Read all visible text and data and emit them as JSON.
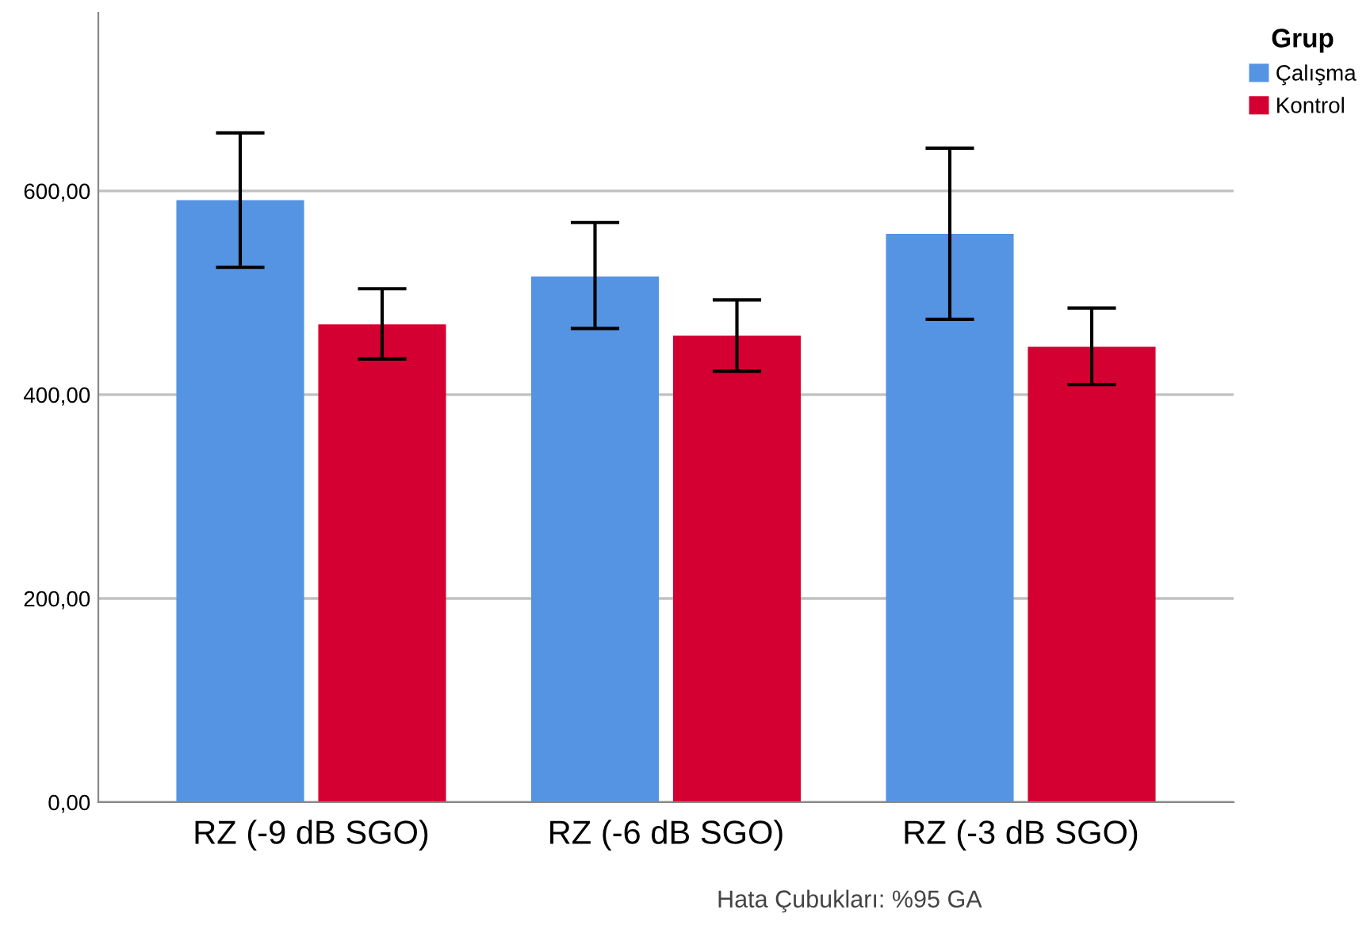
{
  "chart_data": {
    "type": "bar",
    "categories": [
      "RZ (-9 dB SGO)",
      "RZ (-6 dB SGO)",
      "RZ (-3 dB SGO)"
    ],
    "series": [
      {
        "name": "Çalışma",
        "color": "#5594e2",
        "values": [
          591,
          516,
          558
        ],
        "errors": [
          [
            525,
            657
          ],
          [
            465,
            569
          ],
          [
            474,
            642
          ]
        ]
      },
      {
        "name": "Kontrol",
        "color": "#d50032",
        "values": [
          469,
          458,
          447
        ],
        "errors": [
          [
            435,
            504
          ],
          [
            423,
            493
          ],
          [
            410,
            485
          ]
        ]
      }
    ],
    "legend_title": "Grup",
    "legend": "top right",
    "grid": "y",
    "ylim": [
      0,
      775
    ],
    "yticks": [
      {
        "value": 0,
        "label": "0,00"
      },
      {
        "value": 200,
        "label": "200,00"
      },
      {
        "value": 400,
        "label": "400,00"
      },
      {
        "value": 600,
        "label": "600,00"
      }
    ],
    "annotations": [
      "Hata Çubukları: %95 GA"
    ]
  }
}
